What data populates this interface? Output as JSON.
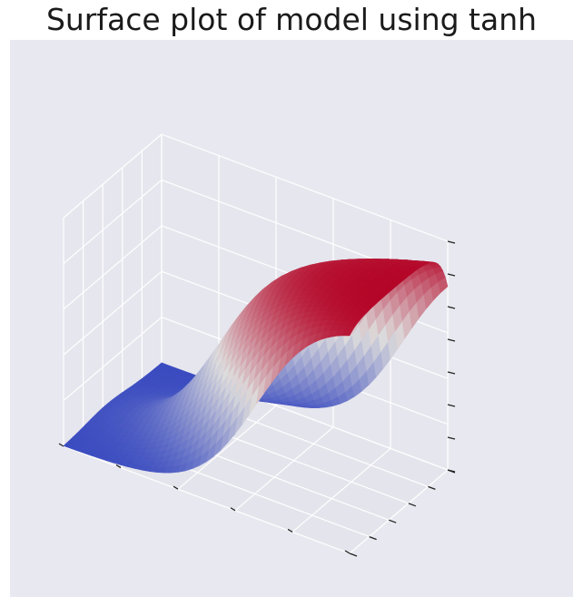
{
  "chart_data": {
    "type": "surface",
    "title": "Surface plot of model using tanh",
    "xlabel": "",
    "ylabel": "",
    "zlabel": "",
    "colormap": "coolwarm",
    "grid": true,
    "tick_labels_shown": false,
    "x_range": [
      -1,
      1
    ],
    "y_range": [
      -1,
      1
    ],
    "z_range": [
      -1,
      1
    ],
    "surface_shape": "z ranges from approximately 1 (red ridge near the left corner) to approximately -1 (blue corners); values estimated from color scale"
  },
  "colors": {
    "background": "#e8e8f0",
    "pane": "#e9e9f1",
    "grid": "#ffffff",
    "low": "#3b4cc0",
    "mid": "#dddcdc",
    "high": "#b40426"
  }
}
